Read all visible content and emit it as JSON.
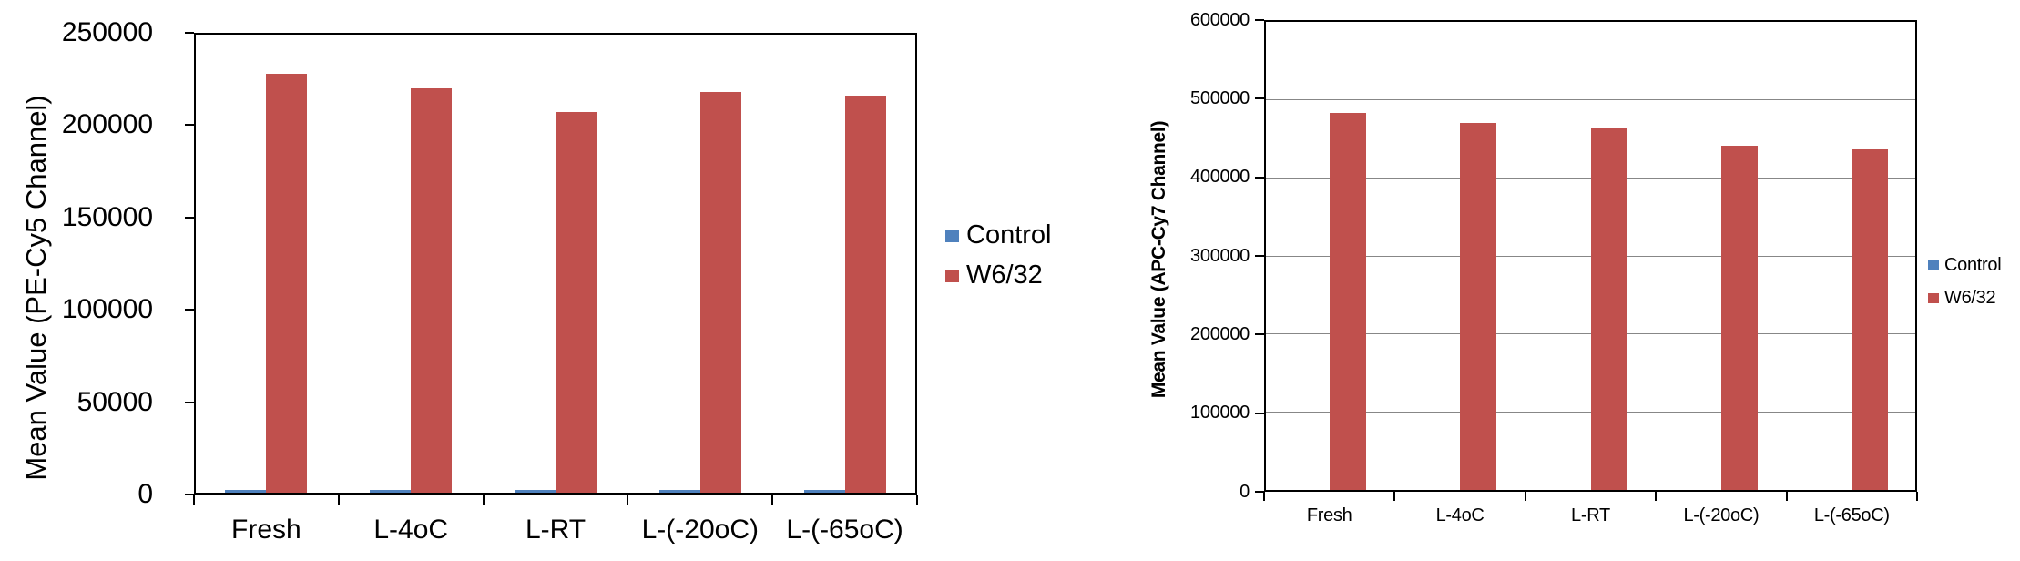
{
  "chart_data": [
    {
      "type": "bar",
      "title": "",
      "xlabel": "",
      "ylabel": "Mean Value (PE-Cy5 Channel)",
      "categories": [
        "Fresh",
        "L-4oC",
        "L-RT",
        "L-(-20oC)",
        "L-(-65oC)"
      ],
      "series": [
        {
          "name": "Control",
          "color": "#4F81BD",
          "values": [
            2500,
            2500,
            2500,
            2500,
            2500
          ]
        },
        {
          "name": "W6/32",
          "color": "#C0504D",
          "values": [
            228000,
            220000,
            207000,
            218000,
            216000
          ]
        }
      ],
      "ylim": [
        0,
        250000
      ],
      "ytick_interval": 50000,
      "ytick_labels": [
        "0",
        "50000",
        "100000",
        "150000",
        "200000",
        "250000"
      ],
      "gridlines": false,
      "legend_position": "right"
    },
    {
      "type": "bar",
      "title": "",
      "xlabel": "",
      "ylabel": "Mean Value (APC-Cy7 Channel)",
      "categories": [
        "Fresh",
        "L-4oC",
        "L-RT",
        "L-(-20oC)",
        "L-(-65oC)"
      ],
      "series": [
        {
          "name": "Control",
          "color": "#4F81BD",
          "values": [
            1000,
            1000,
            1000,
            1000,
            1000
          ]
        },
        {
          "name": "W6/32",
          "color": "#C0504D",
          "values": [
            482000,
            469000,
            463000,
            440000,
            435000
          ]
        }
      ],
      "ylim": [
        0,
        600000
      ],
      "ytick_interval": 100000,
      "ytick_labels": [
        "0",
        "100000",
        "200000",
        "300000",
        "400000",
        "500000",
        "600000"
      ],
      "gridlines": true,
      "legend_position": "right"
    }
  ]
}
